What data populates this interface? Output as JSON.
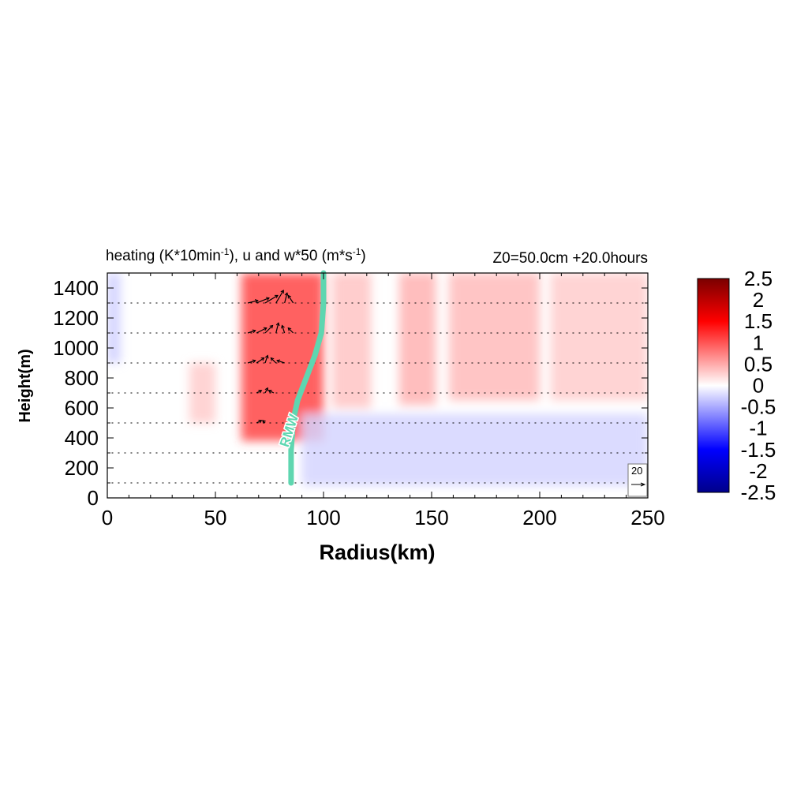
{
  "chart_data": {
    "type": "heatmap",
    "title_left": "heating (K*10min",
    "title_left_sup1": "-1",
    "title_left_mid": "), u and w*50 (m*s",
    "title_left_sup2": "-1",
    "title_left_end": ")",
    "title_right": "Z0=50.0cm  +20.0hours",
    "xlabel": "Radius(km)",
    "ylabel": "Height(m)",
    "xlim": [
      0,
      250
    ],
    "ylim": [
      0,
      1500
    ],
    "xticks": [
      "0",
      "50",
      "100",
      "150",
      "200",
      "250"
    ],
    "xtick_values": [
      0,
      50,
      100,
      150,
      200,
      250
    ],
    "yticks": [
      "0",
      "200",
      "400",
      "600",
      "800",
      "1000",
      "1200",
      "1400"
    ],
    "ytick_values": [
      0,
      200,
      400,
      600,
      800,
      1000,
      1200,
      1400
    ],
    "colorbar": {
      "ticks": [
        "2.5",
        "2",
        "1.5",
        "1",
        "0.5",
        "0",
        "-0.5",
        "-1",
        "-1.5",
        "-2",
        "-2.5"
      ],
      "tick_values": [
        2.5,
        2,
        1.5,
        1,
        0.5,
        0,
        -0.5,
        -1,
        -1.5,
        -2,
        -2.5
      ],
      "range": [
        -2.5,
        2.5
      ],
      "colors": {
        "max": "#7a0000",
        "high": "#ff0000",
        "zero": "#ffffff",
        "low": "#0000ff",
        "min": "#00008a"
      }
    },
    "heating_regions": [
      {
        "r_min": 62,
        "r_max": 100,
        "z_min": 380,
        "z_max": 1500,
        "value": 1.1
      },
      {
        "r_min": 104,
        "r_max": 122,
        "z_min": 600,
        "z_max": 1500,
        "value": 0.35
      },
      {
        "r_min": 135,
        "r_max": 152,
        "z_min": 620,
        "z_max": 1500,
        "value": 0.45
      },
      {
        "r_min": 158,
        "r_max": 200,
        "z_min": 650,
        "z_max": 1500,
        "value": 0.4
      },
      {
        "r_min": 205,
        "r_max": 250,
        "z_min": 650,
        "z_max": 1500,
        "value": 0.3
      },
      {
        "r_min": 38,
        "r_max": 50,
        "z_min": 500,
        "z_max": 900,
        "value": 0.3
      },
      {
        "r_min": 90,
        "r_max": 250,
        "z_min": 80,
        "z_max": 560,
        "value": -0.25
      },
      {
        "r_min": 0,
        "r_max": 6,
        "z_min": 900,
        "z_max": 1500,
        "value": -0.3
      }
    ],
    "rmw_line": {
      "label": "RMW",
      "color": "#5ed6b0",
      "r": [
        85,
        85,
        86,
        88,
        92,
        96,
        99,
        100,
        100
      ],
      "z": [
        100,
        320,
        520,
        650,
        800,
        950,
        1100,
        1300,
        1500
      ]
    },
    "vector_levels": [
      100,
      300,
      500,
      700,
      900,
      1100,
      1300
    ],
    "vector_strong": [
      {
        "r": 65,
        "z": 1300,
        "u": 4,
        "w": 1
      },
      {
        "r": 69,
        "z": 1300,
        "u": 5,
        "w": 2
      },
      {
        "r": 73,
        "z": 1300,
        "u": 5,
        "w": 3
      },
      {
        "r": 78,
        "z": 1300,
        "u": 3,
        "w": 5
      },
      {
        "r": 82,
        "z": 1300,
        "u": 1,
        "w": 4
      },
      {
        "r": 86,
        "z": 1300,
        "u": -2,
        "w": 3
      },
      {
        "r": 65,
        "z": 1100,
        "u": 3,
        "w": 1
      },
      {
        "r": 69,
        "z": 1100,
        "u": 4,
        "w": 2
      },
      {
        "r": 73,
        "z": 1100,
        "u": 3,
        "w": 3
      },
      {
        "r": 78,
        "z": 1100,
        "u": 1,
        "w": 4
      },
      {
        "r": 82,
        "z": 1100,
        "u": -1,
        "w": 3
      },
      {
        "r": 86,
        "z": 1100,
        "u": -2,
        "w": 2
      },
      {
        "r": 65,
        "z": 900,
        "u": 3,
        "w": 1
      },
      {
        "r": 69,
        "z": 900,
        "u": 3,
        "w": 2
      },
      {
        "r": 73,
        "z": 900,
        "u": 1,
        "w": 3
      },
      {
        "r": 78,
        "z": 900,
        "u": -2,
        "w": 2
      },
      {
        "r": 82,
        "z": 900,
        "u": -3,
        "w": 1
      },
      {
        "r": 69,
        "z": 700,
        "u": 2,
        "w": 1
      },
      {
        "r": 73,
        "z": 700,
        "u": 1,
        "w": 2
      },
      {
        "r": 77,
        "z": 700,
        "u": -2,
        "w": 1
      },
      {
        "r": 69,
        "z": 500,
        "u": 2,
        "w": 1
      },
      {
        "r": 73,
        "z": 500,
        "u": -1,
        "w": 1
      }
    ],
    "vector_key": {
      "label": "20",
      "value": 20
    }
  }
}
